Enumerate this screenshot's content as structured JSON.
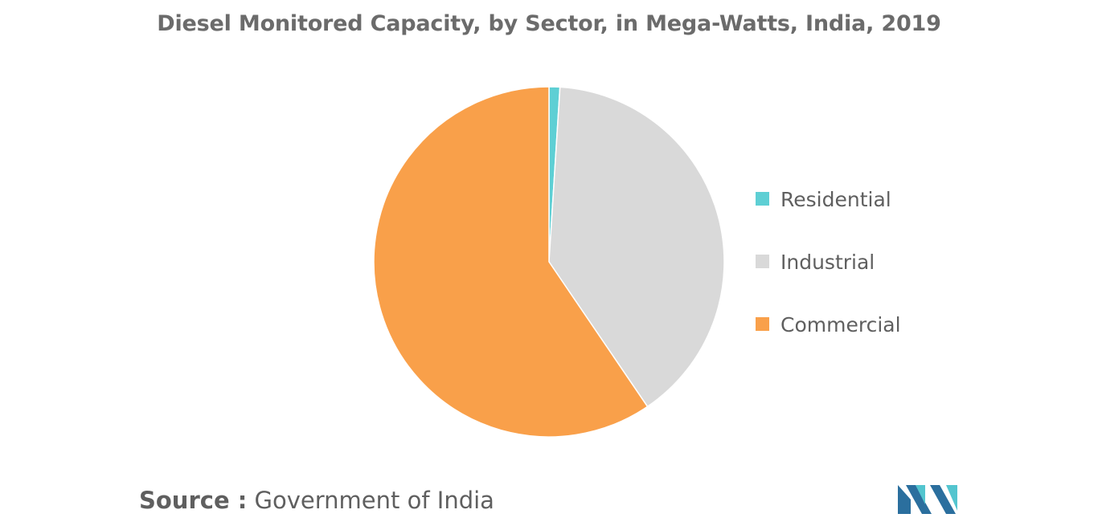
{
  "chart_data": {
    "type": "pie",
    "title": "Diesel Monitored Capacity, by Sector, in Mega-Watts, India, 2019",
    "categories": [
      "Residential",
      "Industrial",
      "Commercial"
    ],
    "values": [
      1.0,
      39.5,
      59.5
    ],
    "colors": [
      "#5ecfd4",
      "#d9d9d9",
      "#f9a04a"
    ],
    "legend_position": "right"
  },
  "source": {
    "label": "Source :",
    "text": "Government of India"
  },
  "logo": {
    "colors": [
      "#2b6f9e",
      "#53c5cf"
    ]
  }
}
